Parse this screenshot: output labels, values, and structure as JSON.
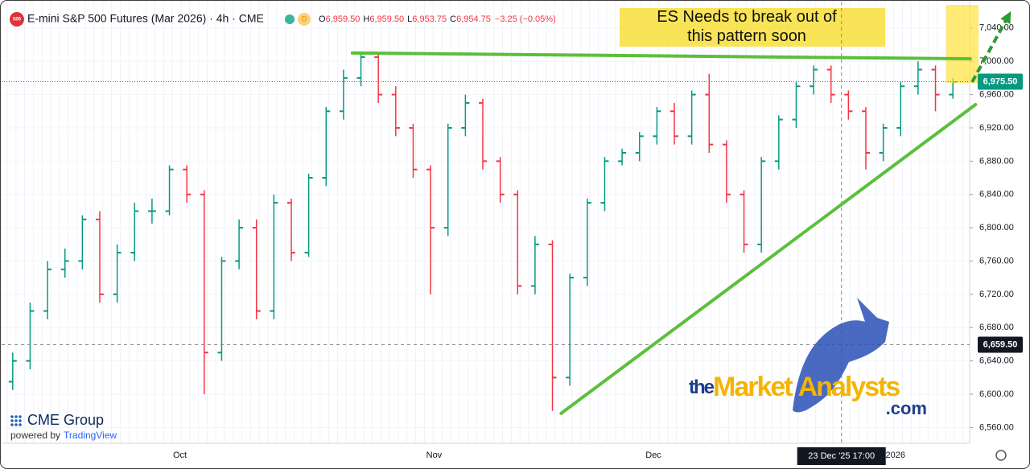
{
  "chart_data": {
    "type": "candlestick",
    "title": "E-mini S&P 500 Futures (Mar 2026) · 4h · CME",
    "symbol_badge": "500",
    "interval_badge": "D",
    "ohlc_header": [
      {
        "label": "O",
        "value": "6,959.50"
      },
      {
        "label": "H",
        "value": "6,959.50"
      },
      {
        "label": "L",
        "value": "6,953.75"
      },
      {
        "label": "C",
        "value": "6,954.75"
      }
    ],
    "change": "−3.25 (−0.05%)",
    "annotation": "ES Needs to break out of this pattern soon",
    "up_color": "#089981",
    "down_color": "#f23645",
    "trendline_color": "#5cbf3c",
    "open": [
      6615,
      6640,
      6700,
      6750,
      6760,
      6810,
      6720,
      6770,
      6820,
      6820,
      6870,
      6840,
      6650,
      6760,
      6800,
      6700,
      6830,
      6770,
      6860,
      6940,
      6980,
      7005,
      6960,
      6920,
      6870,
      6800,
      6920,
      6950,
      6880,
      6840,
      6730,
      6780,
      6620,
      6740,
      6830,
      6880,
      6890,
      6910,
      6940,
      6910,
      6960,
      6900,
      6840,
      6780,
      6880,
      6930,
      6970,
      6990,
      6960,
      6940,
      6890,
      6920,
      6970,
      6990,
      6960
    ],
    "high": [
      6650,
      6710,
      6760,
      6775,
      6815,
      6820,
      6780,
      6830,
      6835,
      6875,
      6875,
      6845,
      6765,
      6810,
      6810,
      6840,
      6835,
      6865,
      6945,
      6990,
      7010,
      7008,
      6970,
      6925,
      6875,
      6925,
      6960,
      6955,
      6885,
      6845,
      6790,
      6785,
      6745,
      6835,
      6885,
      6895,
      6915,
      6945,
      6950,
      6965,
      6985,
      6905,
      6845,
      6885,
      6935,
      6975,
      6995,
      6995,
      6965,
      6945,
      6925,
      6975,
      7000,
      6995,
      6980
    ],
    "low": [
      6605,
      6630,
      6690,
      6740,
      6750,
      6710,
      6710,
      6760,
      6805,
      6815,
      6830,
      6600,
      6640,
      6750,
      6690,
      6690,
      6760,
      6765,
      6850,
      6930,
      6970,
      6950,
      6910,
      6860,
      6720,
      6790,
      6910,
      6870,
      6830,
      6720,
      6720,
      6580,
      6610,
      6730,
      6820,
      6875,
      6880,
      6900,
      6900,
      6900,
      6890,
      6830,
      6770,
      6770,
      6870,
      6920,
      6960,
      6950,
      6930,
      6870,
      6880,
      6910,
      6960,
      6940,
      6955
    ],
    "close": [
      6640,
      6700,
      6750,
      6760,
      6810,
      6720,
      6770,
      6820,
      6820,
      6870,
      6840,
      6650,
      6760,
      6800,
      6700,
      6830,
      6770,
      6860,
      6940,
      6980,
      7005,
      6960,
      6920,
      6870,
      6800,
      6920,
      6950,
      6880,
      6840,
      6730,
      6780,
      6620,
      6740,
      6830,
      6880,
      6890,
      6910,
      6940,
      6910,
      6960,
      6900,
      6840,
      6780,
      6880,
      6930,
      6970,
      6990,
      6960,
      6940,
      6890,
      6920,
      6970,
      6990,
      6960,
      6975
    ],
    "xlim": [
      -0.5,
      54.5
    ],
    "xticks": [
      {
        "value": 9.6,
        "label": "Oct"
      },
      {
        "value": 24.2,
        "label": "Nov"
      },
      {
        "value": 36.8,
        "label": "Dec"
      },
      {
        "value": 50.7,
        "label": "2026"
      }
    ],
    "ylim": [
      6542,
      7064
    ],
    "yticks": [
      {
        "value": 6560,
        "label": "6,560.00"
      },
      {
        "value": 6600,
        "label": "6,600.00"
      },
      {
        "value": 6640,
        "label": "6,640.00"
      },
      {
        "value": 6680,
        "label": "6,680.00"
      },
      {
        "value": 6720,
        "label": "6,720.00"
      },
      {
        "value": 6760,
        "label": "6,760.00"
      },
      {
        "value": 6800,
        "label": "6,800.00"
      },
      {
        "value": 6840,
        "label": "6,840.00"
      },
      {
        "value": 6880,
        "label": "6,880.00"
      },
      {
        "value": 6920,
        "label": "6,920.00"
      },
      {
        "value": 6960,
        "label": "6,960.00"
      },
      {
        "value": 7000,
        "label": "7,000.00"
      },
      {
        "value": 7040,
        "label": "7,040.00"
      }
    ],
    "trendlines": [
      {
        "x": [
          19.5,
          55.0
        ],
        "y": [
          7010,
          7003
        ]
      },
      {
        "x": [
          31.5,
          55.3
        ],
        "y": [
          6577,
          6948
        ]
      }
    ],
    "projection": {
      "x": [
        55.1,
        57.2
      ],
      "y": [
        6975,
        7055
      ]
    },
    "last_price": {
      "value": 6975.5,
      "label": "6,975.50"
    },
    "crosshair_price": {
      "value": 6659.5,
      "label": "6,659.50"
    },
    "crosshair_time": "23 Dec '25   17:00",
    "crosshair_x": 47.6,
    "branding": {
      "exchange": "CME Group",
      "powered": "powered by",
      "platform": "TradingView",
      "site_the": "the",
      "site_market": "Market",
      "site_analysts": "Analysts",
      "site_com": ".com"
    }
  }
}
